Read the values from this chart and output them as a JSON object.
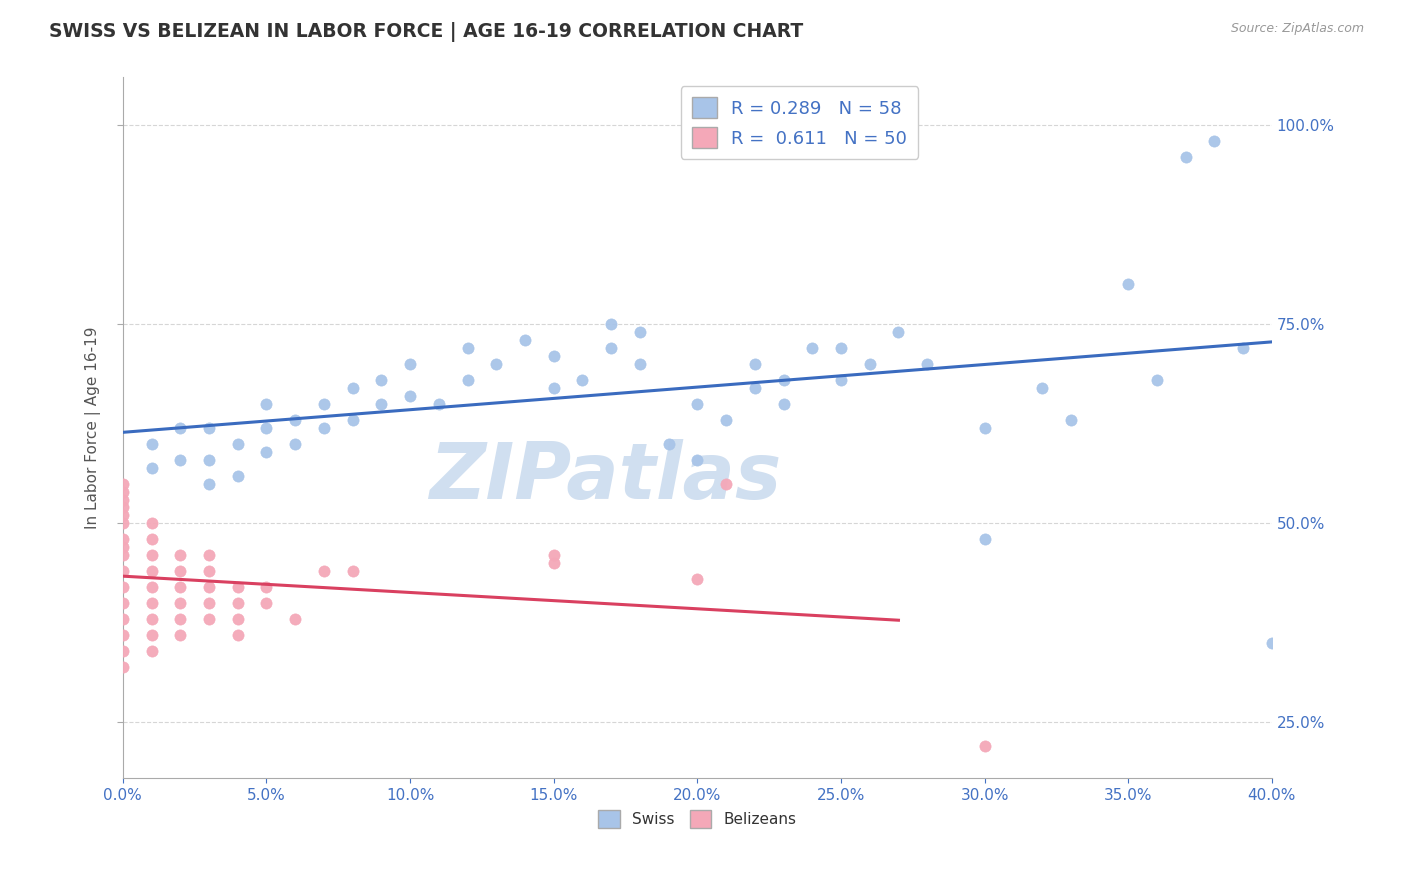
{
  "title": "SWISS VS BELIZEAN IN LABOR FORCE | AGE 16-19 CORRELATION CHART",
  "source_text": "Source: ZipAtlas.com",
  "ylabel": "In Labor Force | Age 16-19",
  "xlim": [
    0.0,
    0.4
  ],
  "ylim": [
    0.18,
    1.06
  ],
  "xticks": [
    0.0,
    0.05,
    0.1,
    0.15,
    0.2,
    0.25,
    0.3,
    0.35,
    0.4
  ],
  "yticks_right": [
    0.25,
    0.5,
    0.75,
    1.0
  ],
  "swiss_R": 0.289,
  "swiss_N": 58,
  "belizean_R": 0.611,
  "belizean_N": 50,
  "swiss_color": "#a8c4e8",
  "belizean_color": "#f4a8b8",
  "swiss_line_color": "#3a6bbf",
  "belizean_line_color": "#d94060",
  "watermark": "ZIPatlas",
  "watermark_color": "#d0dff0",
  "swiss_x": [
    0.01,
    0.01,
    0.02,
    0.02,
    0.03,
    0.03,
    0.03,
    0.04,
    0.04,
    0.05,
    0.05,
    0.05,
    0.06,
    0.06,
    0.07,
    0.07,
    0.08,
    0.08,
    0.09,
    0.09,
    0.1,
    0.1,
    0.11,
    0.12,
    0.12,
    0.13,
    0.14,
    0.15,
    0.15,
    0.16,
    0.17,
    0.17,
    0.18,
    0.18,
    0.19,
    0.2,
    0.2,
    0.21,
    0.22,
    0.22,
    0.23,
    0.23,
    0.24,
    0.25,
    0.25,
    0.26,
    0.27,
    0.28,
    0.3,
    0.3,
    0.32,
    0.33,
    0.35,
    0.36,
    0.37,
    0.38,
    0.39,
    0.4
  ],
  "swiss_y": [
    0.57,
    0.6,
    0.58,
    0.62,
    0.55,
    0.58,
    0.62,
    0.56,
    0.6,
    0.59,
    0.62,
    0.65,
    0.6,
    0.63,
    0.62,
    0.65,
    0.63,
    0.67,
    0.65,
    0.68,
    0.66,
    0.7,
    0.65,
    0.68,
    0.72,
    0.7,
    0.73,
    0.67,
    0.71,
    0.68,
    0.72,
    0.75,
    0.7,
    0.74,
    0.6,
    0.65,
    0.58,
    0.63,
    0.67,
    0.7,
    0.65,
    0.68,
    0.72,
    0.68,
    0.72,
    0.7,
    0.74,
    0.7,
    0.48,
    0.62,
    0.67,
    0.63,
    0.8,
    0.68,
    0.96,
    0.98,
    0.72,
    0.35
  ],
  "belizean_x": [
    0.0,
    0.0,
    0.0,
    0.0,
    0.0,
    0.0,
    0.0,
    0.0,
    0.0,
    0.0,
    0.0,
    0.0,
    0.0,
    0.0,
    0.0,
    0.0,
    0.01,
    0.01,
    0.01,
    0.01,
    0.01,
    0.01,
    0.01,
    0.01,
    0.01,
    0.02,
    0.02,
    0.02,
    0.02,
    0.02,
    0.02,
    0.03,
    0.03,
    0.03,
    0.03,
    0.03,
    0.04,
    0.04,
    0.04,
    0.04,
    0.05,
    0.05,
    0.06,
    0.07,
    0.08,
    0.15,
    0.15,
    0.2,
    0.21,
    0.3
  ],
  "belizean_y": [
    0.38,
    0.4,
    0.42,
    0.44,
    0.46,
    0.47,
    0.48,
    0.5,
    0.51,
    0.52,
    0.53,
    0.54,
    0.55,
    0.36,
    0.34,
    0.32,
    0.34,
    0.36,
    0.38,
    0.4,
    0.42,
    0.44,
    0.46,
    0.48,
    0.5,
    0.36,
    0.38,
    0.4,
    0.42,
    0.44,
    0.46,
    0.38,
    0.4,
    0.42,
    0.44,
    0.46,
    0.36,
    0.38,
    0.4,
    0.42,
    0.4,
    0.42,
    0.38,
    0.44,
    0.44,
    0.45,
    0.46,
    0.43,
    0.55,
    0.22
  ]
}
